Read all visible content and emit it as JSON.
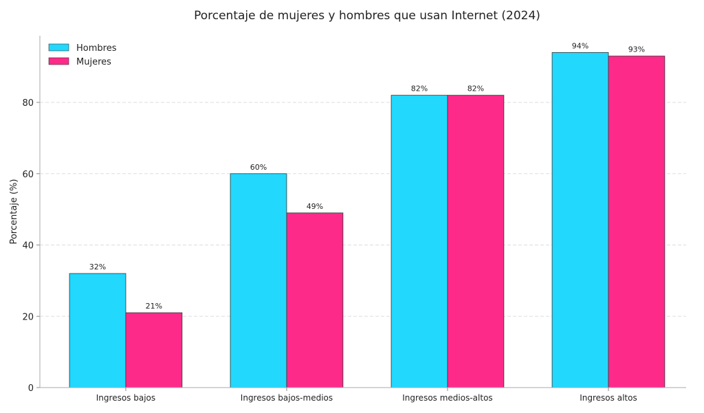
{
  "chart_data": {
    "type": "bar",
    "title": "Porcentaje de mujeres y hombres que usan Internet (2024)",
    "xlabel": "",
    "ylabel": "Porcentaje (%)",
    "categories": [
      "Ingresos bajos",
      "Ingresos bajos-medios",
      "Ingresos medios-altos",
      "Ingresos altos"
    ],
    "series": [
      {
        "name": "Hombres",
        "values": [
          32,
          60,
          82,
          94
        ],
        "labels": [
          "32%",
          "60%",
          "82%",
          "94%"
        ],
        "color": "#22d8fd"
      },
      {
        "name": "Mujeres",
        "values": [
          21,
          49,
          82,
          93
        ],
        "labels": [
          "21%",
          "49%",
          "82%",
          "93%"
        ],
        "color": "#fe2a8a"
      }
    ],
    "ylim": [
      0,
      98.7
    ],
    "yticks": [
      0,
      20,
      40,
      60,
      80
    ],
    "grid": "horizontal dashed",
    "legend": "top-left"
  }
}
